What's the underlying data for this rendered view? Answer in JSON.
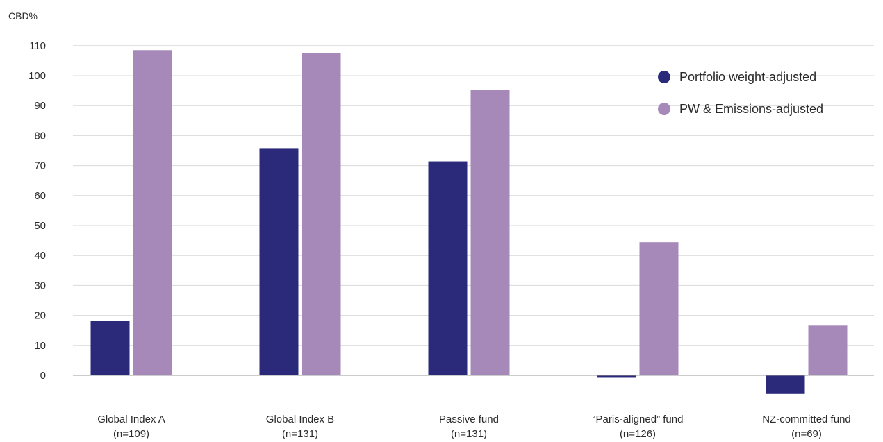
{
  "chart_data": {
    "type": "bar",
    "ylabel": "CBD%",
    "ylim": [
      -5,
      110
    ],
    "yticks": [
      0,
      10,
      20,
      30,
      40,
      50,
      60,
      70,
      80,
      90,
      100,
      110
    ],
    "grid": true,
    "legend_position": "top-right",
    "categories": [
      {
        "name": "Global Index A",
        "sub": "(n=109)"
      },
      {
        "name": "Global Index B",
        "sub": "(n=131)"
      },
      {
        "name": "Passive fund",
        "sub": "(n=131)"
      },
      {
        "name": "“Paris-aligned” fund",
        "sub": "(n=126)"
      },
      {
        "name": "NZ-committed fund",
        "sub": "(n=69)"
      }
    ],
    "series": [
      {
        "name": "Portfolio weight-adjusted",
        "color": "#2b2a7a",
        "values": [
          18.2,
          75.6,
          71.4,
          -0.8,
          -6.2
        ]
      },
      {
        "name": "PW & Emissions-adjusted",
        "color": "#a688b9",
        "values": [
          108.5,
          107.5,
          95.3,
          44.4,
          16.6
        ]
      }
    ]
  }
}
